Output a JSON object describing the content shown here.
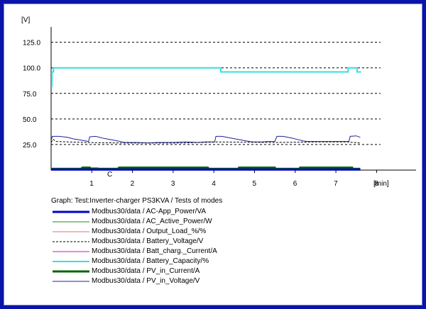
{
  "chart_data": {
    "type": "line",
    "ylabel": "[V]",
    "xlabel": "[min]",
    "y_ticks": [
      "125.0",
      "100.0",
      "75.0",
      "50.0",
      "25.0"
    ],
    "x_ticks": [
      "1",
      "2",
      "3",
      "4",
      "5",
      "6",
      "7",
      "8"
    ],
    "ylim": [
      0,
      140
    ],
    "xlim": [
      0,
      8.2
    ],
    "grid": "horizontal-dashed",
    "cursor_marker": "C",
    "graph_title": "Graph: Test:Inverter-charger PS3KVA / Tests of modes",
    "legend_position": "bottom",
    "series": [
      {
        "name": "Modbus30/data / AC-App_Power/VA",
        "color": "#0000c8",
        "style": "thick",
        "points": [
          [
            0.0,
            0.5
          ],
          [
            7.6,
            0.5
          ]
        ]
      },
      {
        "name": "Modbus30/data / AC_Active_Power/W",
        "color": "#1a8c1a",
        "style": "solid",
        "points": [
          [
            0.0,
            1
          ],
          [
            0.7,
            1
          ],
          [
            0.72,
            2
          ],
          [
            0.95,
            2
          ],
          [
            0.97,
            1
          ],
          [
            1.6,
            1
          ],
          [
            1.62,
            2
          ],
          [
            3.9,
            2
          ],
          [
            3.92,
            1
          ],
          [
            4.6,
            1
          ],
          [
            4.62,
            2
          ],
          [
            5.5,
            2
          ],
          [
            5.52,
            1
          ],
          [
            6.1,
            1
          ],
          [
            6.12,
            2
          ],
          [
            7.4,
            2
          ],
          [
            7.42,
            1
          ],
          [
            7.6,
            1
          ]
        ]
      },
      {
        "name": "Modbus30/data / Output_Load_%/%",
        "color": "#e07070",
        "style": "solid",
        "points": [
          [
            0.0,
            1.5
          ],
          [
            0.95,
            1.5
          ],
          [
            0.97,
            2.5
          ],
          [
            1.15,
            2.5
          ],
          [
            1.17,
            1.5
          ],
          [
            2.3,
            1.5
          ],
          [
            2.32,
            2.5
          ],
          [
            2.55,
            2.5
          ],
          [
            2.57,
            1.5
          ],
          [
            5.0,
            1.5
          ],
          [
            5.02,
            2.5
          ],
          [
            5.3,
            2.5
          ],
          [
            5.32,
            1.5
          ],
          [
            7.6,
            1.5
          ]
        ]
      },
      {
        "name": "Modbus30/data / Battery_Voltage/V",
        "color": "#000000",
        "style": "dashed",
        "points": [
          [
            0.0,
            27
          ],
          [
            0.05,
            30
          ],
          [
            0.12,
            28
          ],
          [
            0.8,
            27
          ],
          [
            1.8,
            26.5
          ],
          [
            3.2,
            26.5
          ],
          [
            4.1,
            27.5
          ],
          [
            5.5,
            27
          ],
          [
            6.5,
            27.5
          ],
          [
            7.3,
            27.5
          ],
          [
            7.6,
            26.5
          ]
        ]
      },
      {
        "name": "Modbus30/data / Batt_charg._Current/A",
        "color": "#e000e0",
        "style": "solid",
        "points": [
          [
            0.0,
            0.2
          ],
          [
            7.6,
            0.2
          ]
        ]
      },
      {
        "name": "Modbus30/data / Battery_Capacity/%",
        "color": "#33e0e0",
        "style": "solid",
        "points": [
          [
            0.0,
            82
          ],
          [
            0.02,
            82
          ],
          [
            0.02,
            96
          ],
          [
            0.06,
            96
          ],
          [
            0.06,
            100
          ],
          [
            4.17,
            100
          ],
          [
            4.17,
            96
          ],
          [
            7.3,
            96
          ],
          [
            7.3,
            100
          ],
          [
            7.52,
            100
          ],
          [
            7.52,
            96
          ],
          [
            7.62,
            96
          ]
        ]
      },
      {
        "name": "Modbus30/data / PV_in_Current/A",
        "color": "#006400",
        "style": "thick",
        "points": [
          [
            0.0,
            1.2
          ],
          [
            0.75,
            1.2
          ],
          [
            0.77,
            2.4
          ],
          [
            0.95,
            2.4
          ],
          [
            0.97,
            1.2
          ],
          [
            1.65,
            1.2
          ],
          [
            1.67,
            2.4
          ],
          [
            3.85,
            2.4
          ],
          [
            3.87,
            1.2
          ],
          [
            4.6,
            1.2
          ],
          [
            4.62,
            2.4
          ],
          [
            5.5,
            2.4
          ],
          [
            5.52,
            1.2
          ],
          [
            6.1,
            1.2
          ],
          [
            6.12,
            2.4
          ],
          [
            7.4,
            2.4
          ],
          [
            7.42,
            1.2
          ],
          [
            7.6,
            1.2
          ]
        ]
      },
      {
        "name": "Modbus30/data / PV_in_Voltage/V",
        "color": "#20209a",
        "style": "solid",
        "points": [
          [
            0.0,
            29
          ],
          [
            0.03,
            33
          ],
          [
            0.2,
            33
          ],
          [
            0.4,
            32
          ],
          [
            0.55,
            30.5
          ],
          [
            0.7,
            29.5
          ],
          [
            0.85,
            28.5
          ],
          [
            0.92,
            28
          ],
          [
            0.95,
            32.5
          ],
          [
            1.1,
            33
          ],
          [
            1.3,
            31
          ],
          [
            1.5,
            29.5
          ],
          [
            1.7,
            28
          ],
          [
            1.8,
            27
          ],
          [
            2.1,
            27
          ],
          [
            2.4,
            26.5
          ],
          [
            2.6,
            27
          ],
          [
            3.0,
            27
          ],
          [
            3.3,
            27.5
          ],
          [
            3.6,
            27
          ],
          [
            3.8,
            27.5
          ],
          [
            4.02,
            27.5
          ],
          [
            4.05,
            33
          ],
          [
            4.2,
            33
          ],
          [
            4.4,
            31.5
          ],
          [
            4.6,
            30
          ],
          [
            4.8,
            28.5
          ],
          [
            4.95,
            27.5
          ],
          [
            5.2,
            27.5
          ],
          [
            5.3,
            28
          ],
          [
            5.5,
            28
          ],
          [
            5.55,
            33
          ],
          [
            5.7,
            33
          ],
          [
            5.9,
            31.5
          ],
          [
            6.05,
            30
          ],
          [
            6.2,
            28.5
          ],
          [
            6.3,
            28
          ],
          [
            7.32,
            28
          ],
          [
            7.35,
            33
          ],
          [
            7.5,
            33.5
          ],
          [
            7.6,
            32
          ]
        ]
      }
    ]
  }
}
